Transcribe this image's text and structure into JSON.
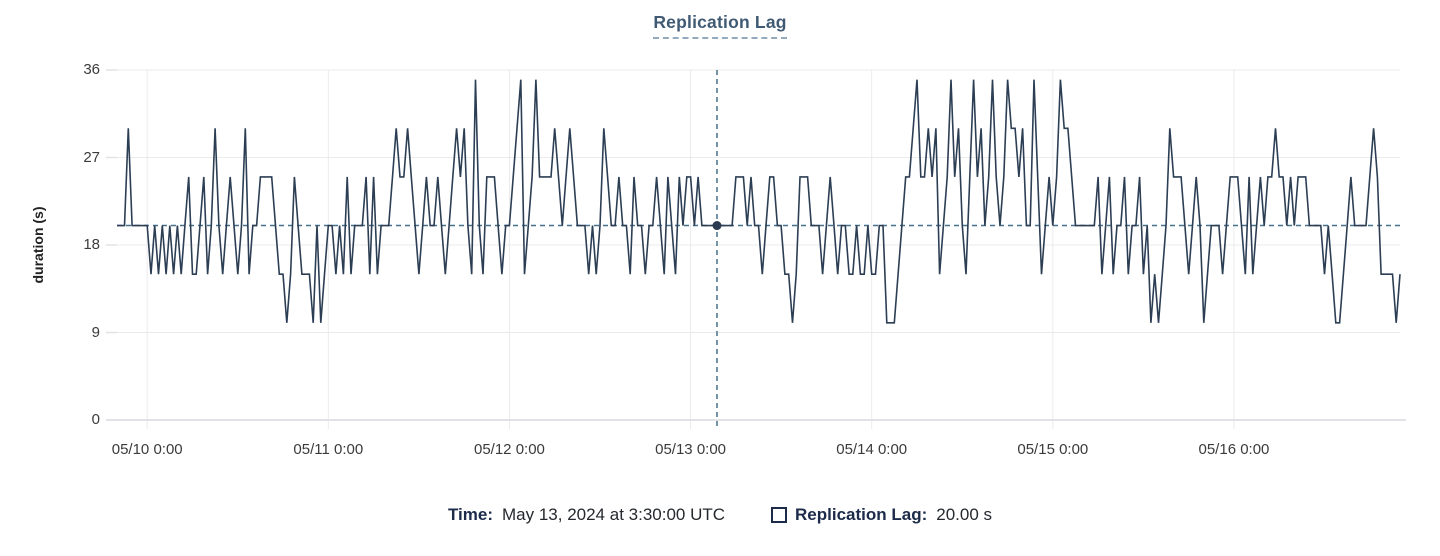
{
  "title": "Replication Lag",
  "y_axis": {
    "label": "duration (s)",
    "ticks_display": [
      36,
      27,
      18,
      9,
      0
    ]
  },
  "x_axis": {
    "ticks": [
      "05/10 0:00",
      "05/11 0:00",
      "05/12 0:00",
      "05/13 0:00",
      "05/14 0:00",
      "05/15 0:00",
      "05/16 0:00"
    ]
  },
  "footer": {
    "time_label": "Time:",
    "time_value": "May 13, 2024 at 3:30:00 UTC",
    "series_label": "Replication Lag:",
    "series_value": "20.00 s"
  },
  "colors": {
    "line": "#2c3e54",
    "crosshair": "#46708b",
    "marker_dot": "#2b3a50",
    "grid": "#ebebee",
    "axis": "#e2e2e6",
    "title": "#415a74",
    "title_underline": "#93a9bd",
    "footer_label": "#1c2b4a",
    "footer_value": "#24292e",
    "tick_label": "#3b3b3b"
  },
  "chart_data": {
    "type": "line",
    "title": "Replication Lag",
    "ylabel": "duration (s)",
    "ylim": [
      0,
      36
    ],
    "y_ticks": [
      0,
      9,
      18,
      27,
      36
    ],
    "grid": true,
    "x_start": "05/09 20:00",
    "x_end": "05/16 22:00",
    "interval_minutes": 30,
    "x_tick_labels": [
      "05/10 0:00",
      "05/11 0:00",
      "05/12 0:00",
      "05/13 0:00",
      "05/14 0:00",
      "05/15 0:00",
      "05/16 0:00"
    ],
    "crosshair_marker": {
      "index": 159,
      "time": "May 13, 2024 at 3:30:00 UTC",
      "value": 20,
      "value_label": "20.00 s"
    },
    "series": [
      {
        "name": "Replication Lag",
        "unit": "s",
        "values": [
          20,
          20,
          20,
          30,
          20,
          20,
          20,
          20,
          20,
          15,
          20,
          15,
          20,
          15,
          20,
          15,
          20,
          15,
          20,
          25,
          15,
          15,
          20,
          25,
          15,
          20,
          30,
          20,
          15,
          20,
          25,
          20,
          15,
          20,
          30,
          15,
          20,
          20,
          25,
          25,
          25,
          25,
          20,
          15,
          15,
          10,
          15,
          25,
          20,
          15,
          15,
          15,
          10,
          20,
          10,
          15,
          20,
          20,
          15,
          20,
          15,
          25,
          15,
          20,
          20,
          20,
          25,
          15,
          25,
          15,
          20,
          20,
          20,
          25,
          30,
          25,
          25,
          30,
          25,
          20,
          15,
          20,
          25,
          20,
          20,
          25,
          20,
          15,
          20,
          25,
          30,
          25,
          30,
          20,
          15,
          35,
          20,
          15,
          25,
          25,
          25,
          20,
          15,
          20,
          20,
          25,
          30,
          35,
          15,
          20,
          25,
          35,
          25,
          25,
          25,
          25,
          30,
          25,
          20,
          25,
          30,
          25,
          20,
          20,
          20,
          15,
          20,
          15,
          20,
          30,
          25,
          20,
          20,
          25,
          20,
          20,
          15,
          25,
          20,
          20,
          15,
          20,
          20,
          25,
          20,
          15,
          25,
          20,
          15,
          25,
          20,
          25,
          25,
          20,
          25,
          20,
          20,
          20,
          20,
          20,
          20,
          20,
          20,
          20,
          25,
          25,
          25,
          20,
          25,
          20,
          20,
          15,
          20,
          25,
          25,
          20,
          20,
          15,
          15,
          10,
          15,
          25,
          25,
          25,
          20,
          20,
          20,
          15,
          20,
          25,
          20,
          15,
          20,
          20,
          15,
          15,
          20,
          15,
          15,
          20,
          15,
          15,
          20,
          20,
          10,
          10,
          10,
          15,
          20,
          25,
          25,
          30,
          35,
          25,
          25,
          30,
          25,
          30,
          15,
          20,
          25,
          35,
          25,
          30,
          20,
          15,
          25,
          35,
          25,
          30,
          20,
          25,
          35,
          25,
          20,
          25,
          35,
          30,
          30,
          25,
          30,
          20,
          20,
          35,
          25,
          15,
          20,
          25,
          20,
          25,
          35,
          30,
          30,
          25,
          20,
          20,
          20,
          20,
          20,
          20,
          25,
          15,
          20,
          25,
          15,
          20,
          20,
          25,
          15,
          20,
          20,
          25,
          15,
          20,
          10,
          15,
          10,
          15,
          20,
          30,
          25,
          25,
          25,
          20,
          15,
          20,
          25,
          20,
          10,
          15,
          20,
          20,
          20,
          15,
          20,
          25,
          25,
          25,
          20,
          15,
          25,
          15,
          20,
          25,
          20,
          25,
          25,
          30,
          25,
          25,
          20,
          25,
          20,
          25,
          25,
          25,
          20,
          20,
          20,
          20,
          15,
          20,
          15,
          10,
          10,
          15,
          20,
          25,
          20,
          20,
          20,
          20,
          25,
          30,
          25,
          15,
          15,
          15,
          15,
          10,
          15
        ]
      }
    ]
  }
}
